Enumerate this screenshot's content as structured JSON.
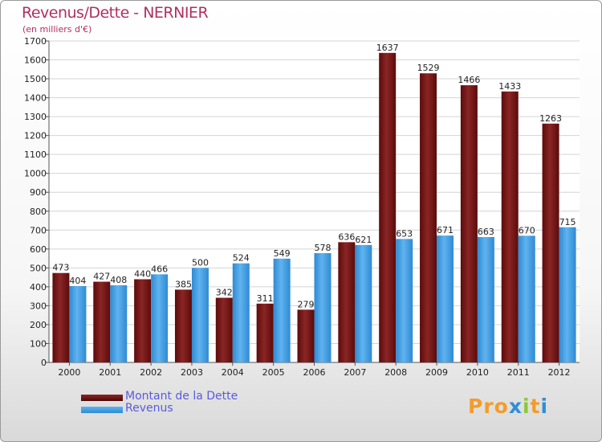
{
  "header": {
    "title": "Revenus/Dette - NERNIER",
    "subtitle": "(en milliers d'€)"
  },
  "logo": {
    "text": "Proxiti",
    "colors": [
      "#f39c2b",
      "#f39c2b",
      "#f39c2b",
      "#2e8fd6",
      "#8cc63f",
      "#f39c2b",
      "#2e8fd6"
    ]
  },
  "chart_data": {
    "type": "bar",
    "categories": [
      "2000",
      "2001",
      "2002",
      "2003",
      "2004",
      "2005",
      "2006",
      "2007",
      "2008",
      "2009",
      "2010",
      "2011",
      "2012"
    ],
    "series": [
      {
        "name": "Montant de la Dette",
        "color": "#7a1414",
        "values": [
          473,
          427,
          440,
          385,
          342,
          311,
          279,
          636,
          1637,
          1529,
          1466,
          1433,
          1263
        ]
      },
      {
        "name": "Revenus",
        "color": "#3e9de3",
        "values": [
          404,
          408,
          466,
          500,
          524,
          549,
          578,
          621,
          653,
          671,
          663,
          670,
          715
        ]
      }
    ],
    "ylim": [
      0,
      1700
    ],
    "ytick_step": 100,
    "grid": true,
    "legend_position": "bottom-left",
    "data_labels": true
  }
}
